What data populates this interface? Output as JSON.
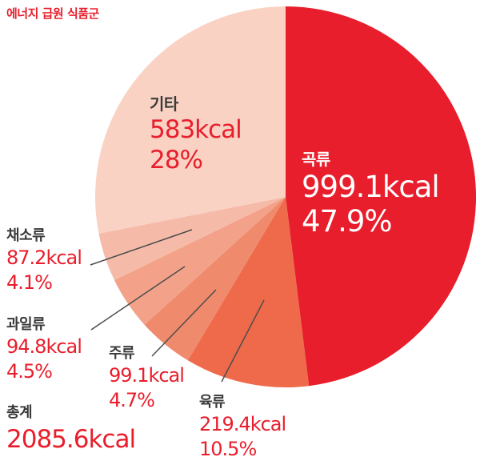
{
  "title": "에너지 급원 식품군",
  "colors": {
    "accent_red": "#e81e2c",
    "dark_text": "#3a3a3a",
    "leader_line": "#4d4d4d",
    "background": "#ffffff"
  },
  "total": {
    "label": "총계",
    "kcal_label": "2085.6kcal",
    "kcal": 2085.6
  },
  "chart_data": {
    "type": "pie",
    "title": "에너지 급원 식품군",
    "direction": "clockwise",
    "start_angle_deg": 0,
    "legend_position": "none",
    "total_kcal": 2085.6,
    "total_label": "총계 2085.6kcal",
    "slices": [
      {
        "id": "grains",
        "name": "곡류",
        "kcal": 999.1,
        "percent": 47.9,
        "kcal_label": "999.1kcal",
        "percent_label": "47.9%",
        "color": "#e81e2c"
      },
      {
        "id": "meat",
        "name": "육류",
        "kcal": 219.4,
        "percent": 10.5,
        "kcal_label": "219.4kcal",
        "percent_label": "10.5%",
        "color": "#ee6a4b"
      },
      {
        "id": "beverages",
        "name": "주류",
        "kcal": 99.1,
        "percent": 4.7,
        "kcal_label": "99.1kcal",
        "percent_label": "4.7%",
        "color": "#f08a6c"
      },
      {
        "id": "fruits",
        "name": "과일류",
        "kcal": 94.8,
        "percent": 4.5,
        "kcal_label": "94.8kcal",
        "percent_label": "4.5%",
        "color": "#f3a289"
      },
      {
        "id": "vegetables",
        "name": "채소류",
        "kcal": 87.2,
        "percent": 4.1,
        "kcal_label": "87.2kcal",
        "percent_label": "4.1%",
        "color": "#f6bba8"
      },
      {
        "id": "others",
        "name": "기타",
        "kcal": 583,
        "percent": 28,
        "kcal_label": "583kcal",
        "percent_label": "28%",
        "color": "#f9d2c4"
      }
    ]
  }
}
